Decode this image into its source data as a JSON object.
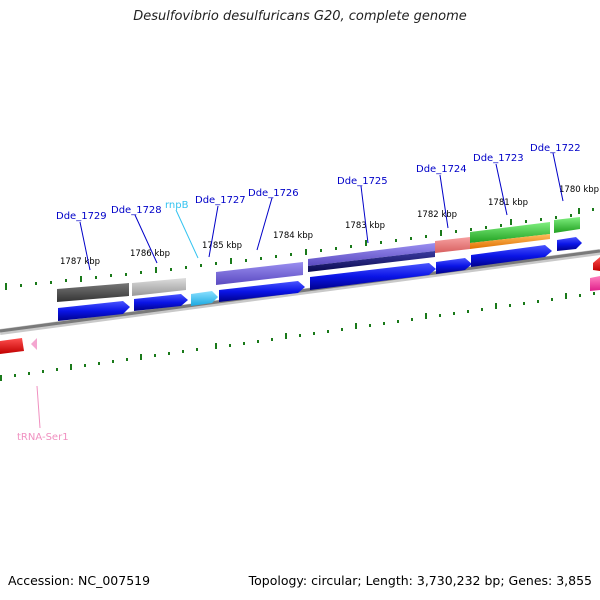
{
  "title": "Desulfovibrio desulfuricans G20, complete genome",
  "footer": {
    "accession": "Accession: NC_007519",
    "summary": "Topology: circular; Length: 3,730,232 bp; Genes: 3,855"
  },
  "ruler_labels": [
    "1787 kbp",
    "1786 kbp",
    "1785 kbp",
    "1784 kbp",
    "1783 kbp",
    "1782 kbp",
    "1781 kbp",
    "1780 kbp"
  ],
  "gene_labels": [
    "Dde_1729",
    "Dde_1728",
    "rnpB",
    "Dde_1727",
    "Dde_1726",
    "Dde_1725",
    "Dde_1724",
    "Dde_1723",
    "Dde_1722",
    "tRNA-Ser1"
  ],
  "colors": {
    "cds": "#0a14e6",
    "rna": "#33c3f0",
    "trna": "#f4a6d0",
    "label_blue": "#0000c8",
    "label_cyan": "#33c3f0",
    "label_pink": "#f090c0",
    "tick": "#1a7a1a",
    "backbone": "#7a7a7a"
  }
}
